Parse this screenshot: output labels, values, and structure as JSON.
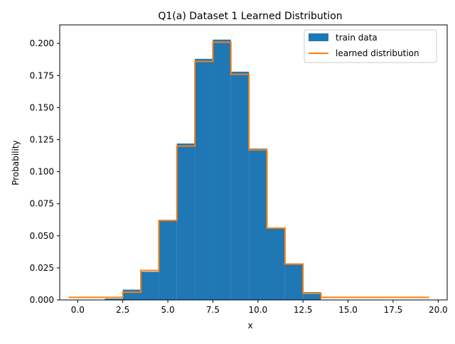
{
  "chart_data": {
    "type": "bar",
    "title": "Q1(a) Dataset 1 Learned Distribution",
    "xlabel": "x",
    "ylabel": "Probability",
    "xlim": [
      -1,
      20.5
    ],
    "ylim": [
      0,
      0.2145
    ],
    "xticks": [
      0.0,
      2.5,
      5.0,
      7.5,
      10.0,
      12.5,
      15.0,
      17.5,
      20.0
    ],
    "xtick_labels": [
      "0.0",
      "2.5",
      "5.0",
      "7.5",
      "10.0",
      "12.5",
      "15.0",
      "17.5",
      "20.0"
    ],
    "yticks": [
      0.0,
      0.025,
      0.05,
      0.075,
      0.1,
      0.125,
      0.15,
      0.175,
      0.2
    ],
    "ytick_labels": [
      "0.000",
      "0.025",
      "0.050",
      "0.075",
      "0.100",
      "0.125",
      "0.150",
      "0.175",
      "0.200"
    ],
    "grid": false,
    "legend_position": "top-right",
    "series": [
      {
        "name": "train data",
        "kind": "histogram",
        "color": "#1f77b4",
        "bin_edges": [
          -0.5,
          0.5,
          1.5,
          2.5,
          3.5,
          4.5,
          5.5,
          6.5,
          7.5,
          8.5,
          9.5,
          10.5,
          11.5,
          12.5,
          13.5,
          14.5,
          15.5,
          16.5,
          17.5,
          18.5,
          19.5
        ],
        "values": [
          0.0,
          0.0,
          0.001,
          0.008,
          0.022,
          0.062,
          0.122,
          0.188,
          0.203,
          0.178,
          0.118,
          0.056,
          0.028,
          0.006,
          0.0,
          0.0,
          0.0,
          0.0,
          0.0,
          0.0
        ]
      },
      {
        "name": "learned distribution",
        "kind": "step",
        "color": "#ff7f0e",
        "bin_edges": [
          -0.5,
          0.5,
          1.5,
          2.5,
          3.5,
          4.5,
          5.5,
          6.5,
          7.5,
          8.5,
          9.5,
          10.5,
          11.5,
          12.5,
          13.5,
          14.5,
          15.5,
          16.5,
          17.5,
          18.5,
          19.5
        ],
        "values": [
          0.002,
          0.002,
          0.002,
          0.006,
          0.023,
          0.062,
          0.12,
          0.186,
          0.201,
          0.176,
          0.117,
          0.056,
          0.028,
          0.005,
          0.002,
          0.002,
          0.002,
          0.002,
          0.002,
          0.002
        ]
      }
    ]
  }
}
